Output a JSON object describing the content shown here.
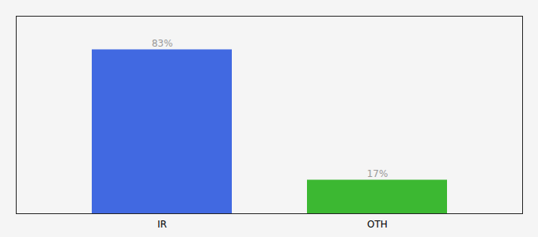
{
  "chart_data": {
    "type": "bar",
    "categories": [
      "IR",
      "OTH"
    ],
    "values": [
      83,
      17
    ],
    "value_labels": [
      "83%",
      "17%"
    ],
    "colors": [
      "#4169e1",
      "#3cb832"
    ],
    "ylim": [
      0,
      100
    ],
    "data_labels": true,
    "tick_labels": "x",
    "grid": false
  }
}
